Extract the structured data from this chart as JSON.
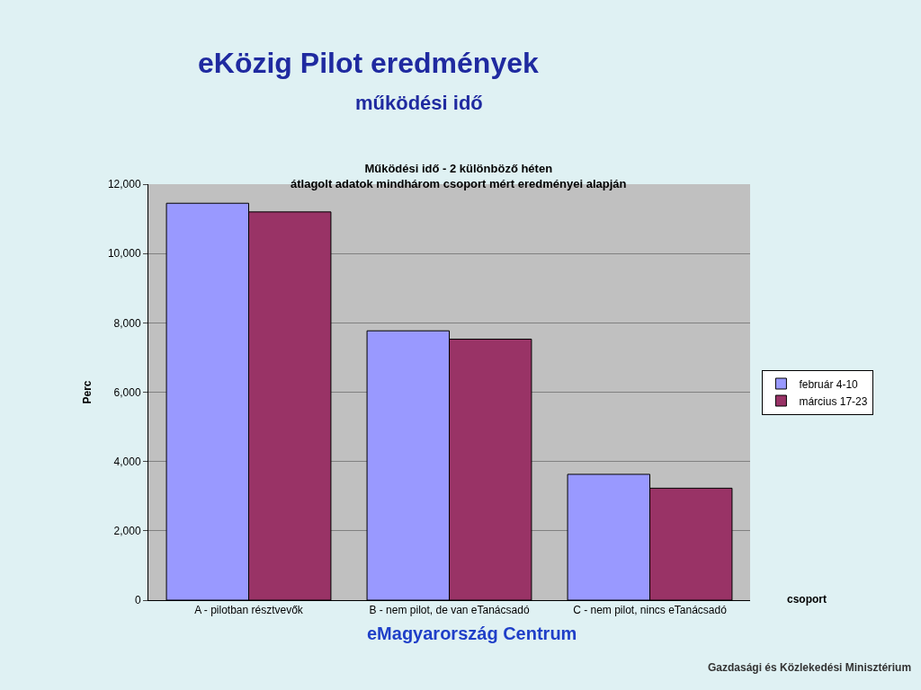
{
  "chart_data": {
    "type": "bar",
    "title": "eKözig Pilot eredmények",
    "subtitle": "működési idő",
    "annotations": [
      "Működési idő - 2 különböző héten\nátlagolt adatok mindhárom csoport mért eredményei alapján",
      "eMagyarország Centrum",
      "Gazdasági és Közlekedési Minisztérium"
    ],
    "xlabel": "csoport",
    "ylabel": "Perc",
    "categories": [
      "A - pilotban résztvevők",
      "B - nem pilot, de van eTanácsadó",
      "C - nem pilot, nincs eTanácsadó"
    ],
    "series": [
      {
        "name": "február 4-10",
        "color": "#9999ff",
        "values": [
          11450,
          7770,
          3630
        ]
      },
      {
        "name": "március 17-23",
        "color": "#993366",
        "values": [
          11200,
          7530,
          3230
        ]
      }
    ],
    "ylim": [
      0,
      12000
    ],
    "yticks": [
      0,
      {
        "value": 2000,
        "label": "2,000"
      },
      {
        "value": 4000,
        "label": "4,000"
      },
      {
        "value": 6000,
        "label": "6,000"
      },
      {
        "value": 8000,
        "label": "8,000"
      },
      {
        "value": 10000,
        "label": "10,000"
      },
      {
        "value": 12000,
        "label": "12,000"
      }
    ],
    "grid": "y",
    "legend": "right"
  }
}
